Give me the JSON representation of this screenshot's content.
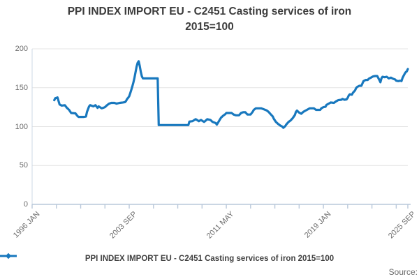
{
  "title": {
    "line1": "PPI INDEX IMPORT EU - C2451 Casting services of iron",
    "line2": "2015=100"
  },
  "legend": {
    "label": "PPI INDEX IMPORT EU - C2451 Casting services of iron 2015=100",
    "marker": "line-with-diamond-icon"
  },
  "source": {
    "label": "Source:"
  },
  "colors": {
    "series_line": "#1878be",
    "axis_line": "#b9c8da",
    "gridline": "#e4e4e4",
    "tick_text": "#6d6d6d",
    "title_text": "#3c3c3c"
  },
  "chart_data": {
    "type": "line",
    "title": "PPI INDEX IMPORT EU - C2451 Casting services of iron 2015=100",
    "x_axis": {
      "start": "1996-01",
      "end": "2025-09",
      "minor_tick_interval_months": 23,
      "labels": [
        {
          "text": "1996 JAN",
          "date": "1996-01"
        },
        {
          "text": "2003 SEP",
          "date": "2003-09"
        },
        {
          "text": "2011 MAY",
          "date": "2011-05"
        },
        {
          "text": "2019 JAN",
          "date": "2019-01"
        },
        {
          "text": "2025 SEP",
          "date": "2025-09"
        }
      ]
    },
    "y_axis": {
      "min": 0,
      "max": 200,
      "ticks": [
        0,
        50,
        100,
        150,
        200
      ],
      "gridlines": true
    },
    "legend_position": "bottom-center",
    "series": [
      {
        "name": "PPI INDEX IMPORT EU - C2451 Casting services of iron 2015=100",
        "color": "#1878be",
        "points": [
          [
            "1997-10",
            134
          ],
          [
            "1997-11",
            136.5
          ],
          [
            "1998-01",
            137.5
          ],
          [
            "1998-02",
            133
          ],
          [
            "1998-03",
            128.5
          ],
          [
            "1998-05",
            127
          ],
          [
            "1998-08",
            127.5
          ],
          [
            "1998-10",
            124
          ],
          [
            "1998-12",
            121.5
          ],
          [
            "1999-02",
            117.5
          ],
          [
            "1999-06",
            117
          ],
          [
            "1999-08",
            113.5
          ],
          [
            "1999-09",
            112.5
          ],
          [
            "2000-02",
            112.5
          ],
          [
            "2000-04",
            113
          ],
          [
            "2000-05",
            119
          ],
          [
            "2000-07",
            126
          ],
          [
            "2000-08",
            127.5
          ],
          [
            "2000-11",
            126
          ],
          [
            "2001-01",
            127.5
          ],
          [
            "2001-03",
            124
          ],
          [
            "2001-04",
            126
          ],
          [
            "2001-07",
            123.5
          ],
          [
            "2001-09",
            124.5
          ],
          [
            "2001-10",
            125
          ],
          [
            "2001-12",
            127.5
          ],
          [
            "2002-02",
            129.5
          ],
          [
            "2002-04",
            130.5
          ],
          [
            "2002-07",
            130.5
          ],
          [
            "2002-09",
            129.5
          ],
          [
            "2002-12",
            130.5
          ],
          [
            "2003-03",
            131
          ],
          [
            "2003-05",
            131.5
          ],
          [
            "2003-06",
            133
          ],
          [
            "2003-07",
            135.5
          ],
          [
            "2003-08",
            137
          ],
          [
            "2003-09",
            139
          ],
          [
            "2003-10",
            143
          ],
          [
            "2003-11",
            147.5
          ],
          [
            "2003-12",
            152
          ],
          [
            "2004-01",
            157
          ],
          [
            "2004-02",
            163
          ],
          [
            "2004-03",
            170
          ],
          [
            "2004-04",
            177
          ],
          [
            "2004-05",
            182
          ],
          [
            "2004-06",
            184
          ],
          [
            "2004-07",
            178
          ],
          [
            "2004-08",
            170
          ],
          [
            "2004-09",
            164.5
          ],
          [
            "2004-10",
            162
          ],
          [
            "2005-12",
            162
          ],
          [
            "2006-01",
            102
          ],
          [
            "2008-05",
            102
          ],
          [
            "2008-06",
            106.5
          ],
          [
            "2008-09",
            107
          ],
          [
            "2008-12",
            109.5
          ],
          [
            "2009-03",
            107
          ],
          [
            "2009-05",
            108.5
          ],
          [
            "2009-08",
            106
          ],
          [
            "2009-11",
            109.5
          ],
          [
            "2010-02",
            108.5
          ],
          [
            "2010-04",
            106
          ],
          [
            "2010-07",
            104.5
          ],
          [
            "2010-08",
            102.5
          ],
          [
            "2010-10",
            107
          ],
          [
            "2010-12",
            111.5
          ],
          [
            "2011-02",
            114
          ],
          [
            "2011-04",
            116
          ],
          [
            "2011-05",
            117.5
          ],
          [
            "2011-10",
            117.5
          ],
          [
            "2011-12",
            115.5
          ],
          [
            "2012-02",
            114.5
          ],
          [
            "2012-05",
            114.5
          ],
          [
            "2012-07",
            117.5
          ],
          [
            "2012-09",
            118.5
          ],
          [
            "2012-11",
            118.5
          ],
          [
            "2013-01",
            115.5
          ],
          [
            "2013-04",
            115.5
          ],
          [
            "2013-06",
            119
          ],
          [
            "2013-07",
            121.5
          ],
          [
            "2013-09",
            123.5
          ],
          [
            "2014-02",
            123.5
          ],
          [
            "2014-04",
            122.5
          ],
          [
            "2014-07",
            121
          ],
          [
            "2014-09",
            119
          ],
          [
            "2014-11",
            116
          ],
          [
            "2015-01",
            113
          ],
          [
            "2015-02",
            110
          ],
          [
            "2015-04",
            106
          ],
          [
            "2015-06",
            103.5
          ],
          [
            "2015-08",
            101.5
          ],
          [
            "2015-10",
            100
          ],
          [
            "2015-11",
            98.5
          ],
          [
            "2015-12",
            99.5
          ],
          [
            "2016-01",
            101
          ],
          [
            "2016-02",
            103
          ],
          [
            "2016-04",
            106
          ],
          [
            "2016-06",
            108
          ],
          [
            "2016-08",
            111
          ],
          [
            "2016-10",
            115
          ],
          [
            "2016-11",
            119
          ],
          [
            "2016-12",
            120.5
          ],
          [
            "2017-02",
            118
          ],
          [
            "2017-04",
            116.5
          ],
          [
            "2017-06",
            119
          ],
          [
            "2017-08",
            120.5
          ],
          [
            "2017-10",
            122
          ],
          [
            "2017-12",
            123.5
          ],
          [
            "2018-04",
            123.5
          ],
          [
            "2018-06",
            121.5
          ],
          [
            "2018-10",
            121.5
          ],
          [
            "2018-11",
            123.5
          ],
          [
            "2019-01",
            125
          ],
          [
            "2019-03",
            125.5
          ],
          [
            "2019-04",
            128
          ],
          [
            "2019-06",
            129.5
          ],
          [
            "2019-08",
            131
          ],
          [
            "2019-11",
            130.5
          ],
          [
            "2020-01",
            132.5
          ],
          [
            "2020-03",
            134
          ],
          [
            "2020-06",
            134.5
          ],
          [
            "2020-07",
            135.5
          ],
          [
            "2020-09",
            134.5
          ],
          [
            "2020-11",
            135
          ],
          [
            "2020-12",
            137
          ],
          [
            "2021-01",
            140
          ],
          [
            "2021-02",
            141.5
          ],
          [
            "2021-04",
            141
          ],
          [
            "2021-05",
            143.5
          ],
          [
            "2021-07",
            146.5
          ],
          [
            "2021-08",
            149.5
          ],
          [
            "2021-09",
            151
          ],
          [
            "2021-11",
            152.5
          ],
          [
            "2022-01",
            152.5
          ],
          [
            "2022-02",
            155.5
          ],
          [
            "2022-03",
            158.5
          ],
          [
            "2022-05",
            160
          ],
          [
            "2022-07",
            160
          ],
          [
            "2022-08",
            161.5
          ],
          [
            "2022-10",
            163
          ],
          [
            "2022-12",
            164.5
          ],
          [
            "2023-02",
            165
          ],
          [
            "2023-04",
            165
          ],
          [
            "2023-06",
            160
          ],
          [
            "2023-07",
            157
          ],
          [
            "2023-08",
            162
          ],
          [
            "2023-09",
            164
          ],
          [
            "2023-11",
            163.5
          ],
          [
            "2024-01",
            164
          ],
          [
            "2024-03",
            162
          ],
          [
            "2024-05",
            163
          ],
          [
            "2024-07",
            161.5
          ],
          [
            "2024-09",
            160.5
          ],
          [
            "2024-10",
            159
          ],
          [
            "2024-12",
            158.5
          ],
          [
            "2025-02",
            159
          ],
          [
            "2025-03",
            158.5
          ],
          [
            "2025-04",
            162.5
          ],
          [
            "2025-05",
            165.5
          ],
          [
            "2025-06",
            168
          ],
          [
            "2025-07",
            170
          ],
          [
            "2025-08",
            171
          ],
          [
            "2025-09",
            174
          ]
        ]
      }
    ]
  }
}
